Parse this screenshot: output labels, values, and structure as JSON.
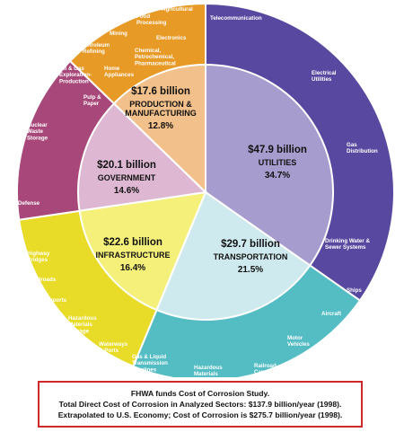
{
  "chart_data": {
    "type": "pie",
    "title": "",
    "inner_sectors": [
      {
        "name": "UTILITIES",
        "value_label": "$47.9 billion",
        "percent_label": "34.7%",
        "value": 47.9,
        "percent": 34.7,
        "color": "#a69ccd"
      },
      {
        "name": "TRANSPORTATION",
        "value_label": "$29.7 billion",
        "percent_label": "21.5%",
        "value": 29.7,
        "percent": 21.5,
        "color": "#cfeaee"
      },
      {
        "name": "INFRASTRUCTURE",
        "value_label": "$22.6 billion",
        "percent_label": "16.4%",
        "value": 22.6,
        "percent": 16.4,
        "color": "#f5f07a"
      },
      {
        "name": "GOVERNMENT",
        "value_label": "$20.1 billion",
        "percent_label": "14.6%",
        "value": 20.1,
        "percent": 14.6,
        "color": "#deb8d2"
      },
      {
        "name": "PRODUCTION & MANUFACTURING",
        "value_label": "$17.6 billion",
        "percent_label": "12.8%",
        "value": 17.6,
        "percent": 12.8,
        "color": "#f2c08a"
      }
    ],
    "outer_ring": [
      {
        "sector": "UTILITIES",
        "color": "#5848a0",
        "items": [
          "Telecommunication",
          "Electrical Utilities",
          "Gas Distribution",
          "Drinking Water & Sewer Systems"
        ]
      },
      {
        "sector": "TRANSPORTATION",
        "color": "#54bcc3",
        "items": [
          "Ships",
          "Aircraft",
          "Motor Vehicles",
          "Railroad Cars",
          "Hazardous Materials Transport"
        ]
      },
      {
        "sector": "INFRASTRUCTURE",
        "color": "#e8dc28",
        "items": [
          "Highway Bridges",
          "Railroads",
          "Airports",
          "Hazardous Materials Storage",
          "Waterways & Ports",
          "Gas & Liquid Transmission Pipelines"
        ]
      },
      {
        "sector": "GOVERNMENT",
        "color": "#a8487a",
        "items": [
          "Nuclear Waste Storage",
          "Defense"
        ]
      },
      {
        "sector": "PRODUCTION & MANUFACTURING",
        "color": "#e89a26",
        "items": [
          "Pulp & Paper",
          "Oil & Gas Exploration-Production",
          "Petroleum Refining",
          "Mining",
          "Food Processing",
          "Agricultural",
          "Electronics",
          "Chemical, Petrochemical, Pharmaceutical",
          "Home Appliances"
        ]
      }
    ]
  },
  "caption": {
    "line1": "FHWA funds Cost of Corrosion Study.",
    "line2": "Total Direct Cost of Corrosion in Analyzed Sectors: $137.9 billion/year (1998).",
    "line3": "Extrapolated to U.S. Economy; Cost of Corrosion is $275.7 billion/year (1998)."
  }
}
